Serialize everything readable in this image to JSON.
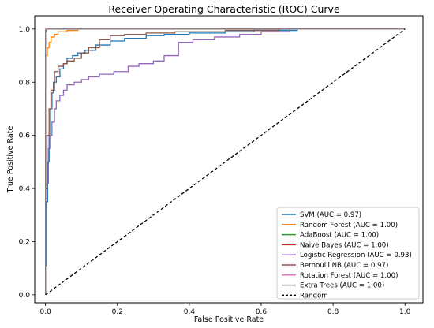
{
  "chart_data": {
    "type": "line",
    "title": "Receiver Operating Characteristic (ROC) Curve",
    "xlabel": "False Positive Rate",
    "ylabel": "True Positive Rate",
    "xlim": [
      -0.03,
      1.05
    ],
    "ylim": [
      -0.03,
      1.05
    ],
    "xticks": [
      "0.0",
      "0.2",
      "0.4",
      "0.6",
      "0.8",
      "1.0"
    ],
    "yticks": [
      "0.0",
      "0.2",
      "0.4",
      "0.6",
      "0.8",
      "1.0"
    ],
    "grid": false,
    "legend_position": "lower-right",
    "series": [
      {
        "name": "SVM (AUC = 0.97)",
        "color": "#1f77b4",
        "dash": "solid",
        "points": [
          [
            0,
            0
          ],
          [
            0,
            0.11
          ],
          [
            0.003,
            0.11
          ],
          [
            0.003,
            0.35
          ],
          [
            0.006,
            0.35
          ],
          [
            0.006,
            0.5
          ],
          [
            0.01,
            0.5
          ],
          [
            0.01,
            0.6
          ],
          [
            0.014,
            0.6
          ],
          [
            0.014,
            0.7
          ],
          [
            0.018,
            0.7
          ],
          [
            0.018,
            0.76
          ],
          [
            0.022,
            0.76
          ],
          [
            0.022,
            0.8
          ],
          [
            0.03,
            0.8
          ],
          [
            0.03,
            0.82
          ],
          [
            0.04,
            0.82
          ],
          [
            0.04,
            0.85
          ],
          [
            0.05,
            0.85
          ],
          [
            0.05,
            0.87
          ],
          [
            0.06,
            0.87
          ],
          [
            0.06,
            0.89
          ],
          [
            0.075,
            0.89
          ],
          [
            0.075,
            0.9
          ],
          [
            0.09,
            0.9
          ],
          [
            0.09,
            0.91
          ],
          [
            0.11,
            0.91
          ],
          [
            0.11,
            0.92
          ],
          [
            0.14,
            0.92
          ],
          [
            0.14,
            0.94
          ],
          [
            0.18,
            0.94
          ],
          [
            0.18,
            0.955
          ],
          [
            0.22,
            0.955
          ],
          [
            0.22,
            0.965
          ],
          [
            0.28,
            0.965
          ],
          [
            0.28,
            0.975
          ],
          [
            0.33,
            0.975
          ],
          [
            0.33,
            0.98
          ],
          [
            0.4,
            0.98
          ],
          [
            0.4,
            0.985
          ],
          [
            0.5,
            0.985
          ],
          [
            0.5,
            0.99
          ],
          [
            0.58,
            0.99
          ],
          [
            0.58,
            0.995
          ],
          [
            0.7,
            0.995
          ],
          [
            0.7,
            1.0
          ],
          [
            1.0,
            1.0
          ]
        ]
      },
      {
        "name": "Random Forest (AUC = 1.00)",
        "color": "#ff7f0e",
        "dash": "solid",
        "points": [
          [
            0,
            0
          ],
          [
            0,
            0.9
          ],
          [
            0.005,
            0.9
          ],
          [
            0.005,
            0.93
          ],
          [
            0.01,
            0.93
          ],
          [
            0.01,
            0.95
          ],
          [
            0.015,
            0.95
          ],
          [
            0.015,
            0.97
          ],
          [
            0.025,
            0.97
          ],
          [
            0.025,
            0.98
          ],
          [
            0.035,
            0.98
          ],
          [
            0.035,
            0.99
          ],
          [
            0.06,
            0.99
          ],
          [
            0.06,
            0.995
          ],
          [
            0.09,
            0.995
          ],
          [
            0.09,
            1.0
          ],
          [
            1.0,
            1.0
          ]
        ]
      },
      {
        "name": "AdaBoost (AUC = 1.00)",
        "color": "#2ca02c",
        "dash": "solid",
        "points": [
          [
            0,
            0
          ],
          [
            0,
            0.99
          ],
          [
            0.003,
            0.99
          ],
          [
            0.003,
            1.0
          ],
          [
            1.0,
            1.0
          ]
        ]
      },
      {
        "name": "Naive Bayes (AUC = 1.00)",
        "color": "#d62728",
        "dash": "solid",
        "points": [
          [
            0,
            0
          ],
          [
            0,
            0.995
          ],
          [
            0.002,
            0.995
          ],
          [
            0.002,
            1.0
          ],
          [
            1.0,
            1.0
          ]
        ]
      },
      {
        "name": "Logistic Regression (AUC = 0.93)",
        "color": "#9467bd",
        "dash": "solid",
        "points": [
          [
            0,
            0
          ],
          [
            0,
            0.36
          ],
          [
            0.004,
            0.36
          ],
          [
            0.004,
            0.42
          ],
          [
            0.008,
            0.42
          ],
          [
            0.008,
            0.55
          ],
          [
            0.012,
            0.55
          ],
          [
            0.012,
            0.6
          ],
          [
            0.018,
            0.6
          ],
          [
            0.018,
            0.65
          ],
          [
            0.025,
            0.65
          ],
          [
            0.025,
            0.7
          ],
          [
            0.03,
            0.7
          ],
          [
            0.03,
            0.73
          ],
          [
            0.04,
            0.73
          ],
          [
            0.04,
            0.75
          ],
          [
            0.05,
            0.75
          ],
          [
            0.05,
            0.77
          ],
          [
            0.06,
            0.77
          ],
          [
            0.06,
            0.79
          ],
          [
            0.08,
            0.79
          ],
          [
            0.08,
            0.8
          ],
          [
            0.1,
            0.8
          ],
          [
            0.1,
            0.81
          ],
          [
            0.12,
            0.81
          ],
          [
            0.12,
            0.82
          ],
          [
            0.15,
            0.82
          ],
          [
            0.15,
            0.83
          ],
          [
            0.19,
            0.83
          ],
          [
            0.19,
            0.84
          ],
          [
            0.23,
            0.84
          ],
          [
            0.23,
            0.86
          ],
          [
            0.26,
            0.86
          ],
          [
            0.26,
            0.87
          ],
          [
            0.3,
            0.87
          ],
          [
            0.3,
            0.88
          ],
          [
            0.33,
            0.88
          ],
          [
            0.33,
            0.9
          ],
          [
            0.37,
            0.9
          ],
          [
            0.37,
            0.95
          ],
          [
            0.41,
            0.95
          ],
          [
            0.41,
            0.96
          ],
          [
            0.47,
            0.96
          ],
          [
            0.47,
            0.97
          ],
          [
            0.54,
            0.97
          ],
          [
            0.54,
            0.98
          ],
          [
            0.6,
            0.98
          ],
          [
            0.6,
            0.99
          ],
          [
            0.68,
            0.99
          ],
          [
            0.68,
            1.0
          ],
          [
            1.0,
            1.0
          ]
        ]
      },
      {
        "name": "Bernoulli NB (AUC = 0.97)",
        "color": "#8c564b",
        "dash": "solid",
        "points": [
          [
            0,
            0
          ],
          [
            0,
            0.4
          ],
          [
            0.004,
            0.4
          ],
          [
            0.004,
            0.6
          ],
          [
            0.01,
            0.6
          ],
          [
            0.01,
            0.7
          ],
          [
            0.015,
            0.7
          ],
          [
            0.015,
            0.77
          ],
          [
            0.025,
            0.77
          ],
          [
            0.025,
            0.84
          ],
          [
            0.035,
            0.84
          ],
          [
            0.035,
            0.86
          ],
          [
            0.05,
            0.86
          ],
          [
            0.05,
            0.87
          ],
          [
            0.06,
            0.87
          ],
          [
            0.06,
            0.88
          ],
          [
            0.08,
            0.88
          ],
          [
            0.08,
            0.89
          ],
          [
            0.1,
            0.89
          ],
          [
            0.1,
            0.91
          ],
          [
            0.12,
            0.91
          ],
          [
            0.12,
            0.93
          ],
          [
            0.15,
            0.93
          ],
          [
            0.15,
            0.96
          ],
          [
            0.18,
            0.96
          ],
          [
            0.18,
            0.975
          ],
          [
            0.22,
            0.975
          ],
          [
            0.22,
            0.98
          ],
          [
            0.28,
            0.98
          ],
          [
            0.28,
            0.985
          ],
          [
            0.36,
            0.985
          ],
          [
            0.36,
            0.99
          ],
          [
            0.5,
            0.99
          ],
          [
            0.5,
            0.995
          ],
          [
            0.65,
            0.995
          ],
          [
            0.65,
            1.0
          ],
          [
            1.0,
            1.0
          ]
        ]
      },
      {
        "name": "Rotation Forest (AUC = 1.00)",
        "color": "#e377c2",
        "dash": "solid",
        "points": [
          [
            0,
            0
          ],
          [
            0,
            1.0
          ],
          [
            1.0,
            1.0
          ]
        ]
      },
      {
        "name": "Extra Trees (AUC = 1.00)",
        "color": "#7f7f7f",
        "dash": "solid",
        "points": [
          [
            0,
            0
          ],
          [
            0,
            0.995
          ],
          [
            0.004,
            0.995
          ],
          [
            0.004,
            1.0
          ],
          [
            1.0,
            1.0
          ]
        ]
      },
      {
        "name": "Random",
        "color": "#000000",
        "dash": "dashed",
        "points": [
          [
            0,
            0
          ],
          [
            1,
            1
          ]
        ]
      }
    ]
  }
}
